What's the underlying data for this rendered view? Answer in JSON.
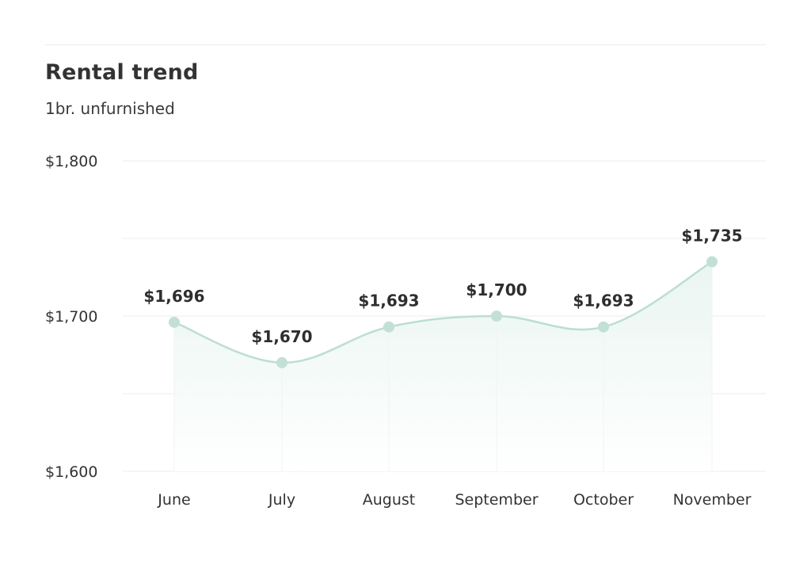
{
  "title": "Rental trend",
  "subtitle": "1br. unfurnished",
  "colors": {
    "line": "#bcded3",
    "marker": "#c3e0d6",
    "area_top": "#e7f4ef",
    "grid": "#eeeeee",
    "text": "#333333",
    "label": "#2e2e2e"
  },
  "chart_data": {
    "type": "line",
    "categories": [
      "June",
      "July",
      "August",
      "September",
      "October",
      "November"
    ],
    "values": [
      1696,
      1670,
      1693,
      1700,
      1693,
      1735
    ],
    "data_labels": [
      "$1,696",
      "$1,670",
      "$1,693",
      "$1,700",
      "$1,693",
      "$1,735"
    ],
    "y_ticks": [
      1600,
      1700,
      1800
    ],
    "y_tick_labels": [
      "$1,600",
      "$1,700",
      "$1,800"
    ],
    "ylim": [
      1600,
      1800
    ],
    "smooth": true,
    "area_fill": true,
    "grid": true,
    "legend": "none"
  }
}
